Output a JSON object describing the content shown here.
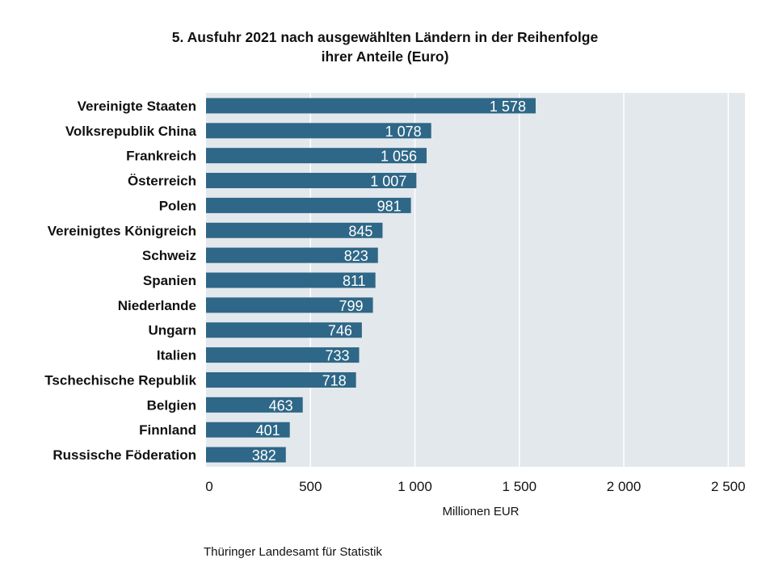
{
  "chart_data": {
    "type": "bar",
    "orientation": "horizontal",
    "title_lines": [
      "5. Ausfuhr 2021 nach ausgewählten Ländern in der Reihenfolge",
      "ihrer Anteile (Euro)"
    ],
    "categories": [
      "Vereinigte Staaten",
      "Volksrepublik China",
      "Frankreich",
      "Österreich",
      "Polen",
      "Vereinigtes Königreich",
      "Schweiz",
      "Spanien",
      "Niederlande",
      "Ungarn",
      "Italien",
      "Tschechische Republik",
      "Belgien",
      "Finnland",
      "Russische Föderation"
    ],
    "values": [
      1578,
      1078,
      1056,
      1007,
      981,
      845,
      823,
      811,
      799,
      746,
      733,
      718,
      463,
      401,
      382
    ],
    "value_labels": [
      "1 578",
      "1 078",
      "1 056",
      "1 007",
      "981",
      "845",
      "823",
      "811",
      "799",
      "746",
      "733",
      "718",
      "463",
      "401",
      "382"
    ],
    "xlabel": "Millionen EUR",
    "ylabel": "",
    "xticks": [
      0,
      500,
      1000,
      1500,
      2000,
      2500
    ],
    "xtick_labels": [
      "0",
      "500",
      "1 000",
      "1 500",
      "2 000",
      "2 500"
    ],
    "xlim": [
      0,
      2580
    ],
    "grid": true,
    "colors": {
      "bar": "#2e6787",
      "plot_bg": "#e3e8ec",
      "grid": "#ffffff"
    }
  },
  "source": "Thüringer Landesamt für Statistik"
}
